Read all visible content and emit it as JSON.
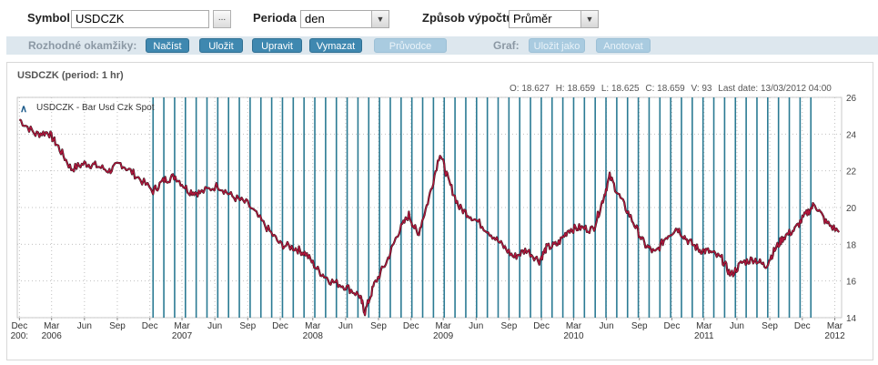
{
  "toolbar": {
    "symbol_label": "Symbol",
    "symbol_value": "USDCZK",
    "browse_label": "...",
    "period_label": "Perioda",
    "period_value": "den",
    "calc_label": "Způsob výpočtu",
    "calc_value": "Průměr"
  },
  "actions": {
    "decisions_label": "Rozhodné okamžiky:",
    "load": "Načíst",
    "save": "Uložit",
    "edit": "Upravit",
    "delete": "Vymazat",
    "wizard": "Průvodce",
    "graph_label": "Graf:",
    "save_as": "Uložit jako",
    "annotate": "Anotovat"
  },
  "chart_header": {
    "title": "USDCZK  (period: 1 hr)",
    "open": "O: 18.627",
    "high": "H: 18.659",
    "low": "L: 18.625",
    "close": "C: 18.659",
    "volume": "V: 93",
    "last_date": "Last date: 13/03/2012 04:00"
  },
  "chart_data": {
    "type": "line",
    "legend": "USDCZK - Bar Usd Czk Spot",
    "legend_placement": "top-left",
    "y_axis_side": "right",
    "ylim": [
      14,
      26
    ],
    "yticks": [
      "14",
      "16",
      "18",
      "20",
      "22",
      "24",
      "26"
    ],
    "x_month_labels": [
      "Dec",
      "Mar",
      "Jun",
      "Sep",
      "Dec",
      "Mar",
      "Jun",
      "Sep",
      "Dec",
      "Mar",
      "Jun",
      "Sep",
      "Dec",
      "Mar",
      "Jun",
      "Sep",
      "Dec",
      "Mar",
      "Jun",
      "Sep",
      "Dec",
      "Mar",
      "Jun",
      "Sep",
      "Dec",
      "Mar"
    ],
    "x_year_labels": [
      "200:",
      "2006",
      "2007",
      "2008",
      "2009",
      "2010",
      "2011",
      "2012"
    ],
    "series": [
      {
        "name": "USDCZK - Bar Usd Czk Spot",
        "color": "#b0163c",
        "points": [
          [
            "2005-12-01",
            24.8
          ],
          [
            "2006-01-15",
            24.0
          ],
          [
            "2006-02-20",
            24.1
          ],
          [
            "2006-03-20",
            23.3
          ],
          [
            "2006-04-25",
            22.1
          ],
          [
            "2006-06-01",
            22.4
          ],
          [
            "2006-07-01",
            22.3
          ],
          [
            "2006-08-10",
            22.0
          ],
          [
            "2006-09-10",
            22.4
          ],
          [
            "2006-10-20",
            21.8
          ],
          [
            "2006-12-10",
            20.9
          ],
          [
            "2007-01-10",
            21.5
          ],
          [
            "2007-02-10",
            21.7
          ],
          [
            "2007-03-20",
            20.9
          ],
          [
            "2007-04-20",
            20.8
          ],
          [
            "2007-06-10",
            21.2
          ],
          [
            "2007-07-20",
            20.6
          ],
          [
            "2007-09-01",
            20.2
          ],
          [
            "2007-10-20",
            19.0
          ],
          [
            "2007-12-01",
            18.0
          ],
          [
            "2008-01-10",
            17.8
          ],
          [
            "2008-02-10",
            17.5
          ],
          [
            "2008-03-15",
            16.6
          ],
          [
            "2008-04-20",
            16.0
          ],
          [
            "2008-06-01",
            15.7
          ],
          [
            "2008-07-10",
            15.2
          ],
          [
            "2008-07-25",
            14.3
          ],
          [
            "2008-08-20",
            15.8
          ],
          [
            "2008-09-25",
            17.1
          ],
          [
            "2008-10-25",
            18.6
          ],
          [
            "2008-11-25",
            19.6
          ],
          [
            "2008-12-20",
            18.5
          ],
          [
            "2009-01-20",
            20.5
          ],
          [
            "2009-02-20",
            23.0
          ],
          [
            "2009-03-15",
            21.5
          ],
          [
            "2009-04-15",
            20.0
          ],
          [
            "2009-05-20",
            19.5
          ],
          [
            "2009-07-01",
            18.8
          ],
          [
            "2009-08-10",
            18.0
          ],
          [
            "2009-09-15",
            17.3
          ],
          [
            "2009-10-20",
            17.7
          ],
          [
            "2009-11-25",
            17.1
          ],
          [
            "2009-12-15",
            17.8
          ],
          [
            "2010-01-15",
            18.0
          ],
          [
            "2010-02-15",
            18.8
          ],
          [
            "2010-03-20",
            18.9
          ],
          [
            "2010-04-25",
            18.8
          ],
          [
            "2010-05-20",
            20.3
          ],
          [
            "2010-06-10",
            21.7
          ],
          [
            "2010-07-10",
            20.5
          ],
          [
            "2010-08-15",
            19.2
          ],
          [
            "2010-09-15",
            18.0
          ],
          [
            "2010-10-15",
            17.5
          ],
          [
            "2010-11-15",
            18.4
          ],
          [
            "2010-12-15",
            18.9
          ],
          [
            "2011-01-15",
            18.2
          ],
          [
            "2011-02-15",
            17.7
          ],
          [
            "2011-03-15",
            17.6
          ],
          [
            "2011-04-20",
            17.2
          ],
          [
            "2011-05-15",
            16.3
          ],
          [
            "2011-06-15",
            17.0
          ],
          [
            "2011-07-20",
            17.2
          ],
          [
            "2011-08-20",
            16.8
          ],
          [
            "2011-09-15",
            17.7
          ],
          [
            "2011-10-10",
            18.4
          ],
          [
            "2011-11-10",
            18.8
          ],
          [
            "2011-12-10",
            19.6
          ],
          [
            "2012-01-05",
            20.2
          ],
          [
            "2012-02-05",
            19.2
          ],
          [
            "2012-03-13",
            18.66
          ]
        ]
      }
    ],
    "decision_lines_color": "#2a7a93",
    "grid": true
  }
}
